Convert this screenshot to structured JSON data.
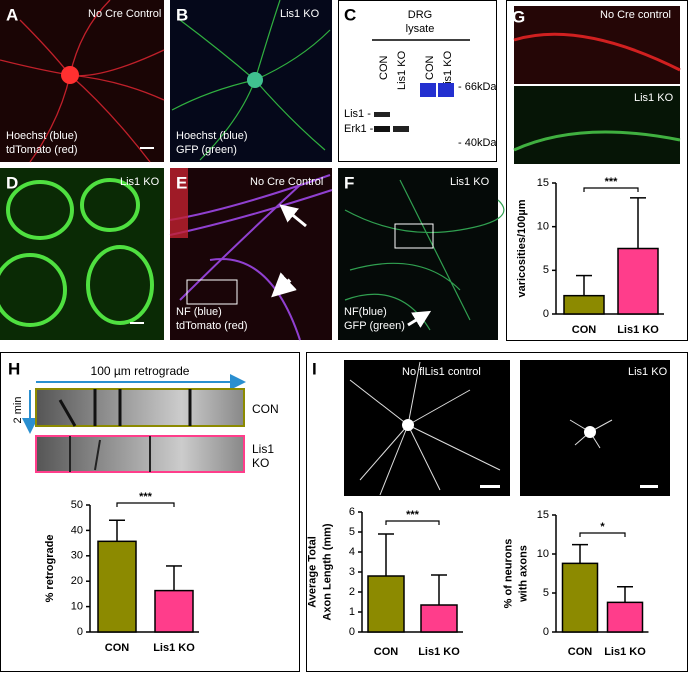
{
  "panels": {
    "A": {
      "label": "A",
      "texts": [
        "No Cre Control",
        "Hoechst (blue)",
        "tdTomato (red)"
      ]
    },
    "B": {
      "label": "B",
      "texts": [
        "Lis1 KO",
        "Hoechst (blue)",
        "GFP (green)"
      ]
    },
    "C": {
      "label": "C",
      "texts": [
        "DRG",
        "lysate",
        "CON",
        "Lis1 KO",
        "CON",
        "Lis1 KO",
        "Lis1 -",
        "Erk1 -",
        "- 66kDa",
        "- 40kDa"
      ]
    },
    "D": {
      "label": "D",
      "texts": [
        "Lis1 KO"
      ]
    },
    "E": {
      "label": "E",
      "texts": [
        "No Cre Control",
        "NF (blue)",
        "tdTomato (red)"
      ]
    },
    "F": {
      "label": "F",
      "texts": [
        "Lis1 KO",
        "NF(blue)",
        "GFP (green)"
      ]
    },
    "G": {
      "label": "G",
      "texts": [
        "No Cre control",
        "Lis1 KO"
      ]
    },
    "H": {
      "label": "H",
      "texts": [
        "100 µm retrograde",
        "2 min",
        "CON",
        "Lis1",
        "KO"
      ]
    },
    "I": {
      "label": "I",
      "texts": [
        "No flLis1 control",
        "Lis1 KO"
      ]
    }
  },
  "chart_data": [
    {
      "type": "bar",
      "ylabel": [
        "varicosities/100µm"
      ],
      "categories": [
        "CON",
        "Lis1 KO"
      ],
      "values": [
        2.1,
        7.5
      ],
      "errors": [
        2.3,
        5.8
      ],
      "colors": [
        "#8c8a00",
        "#ff3d8b"
      ],
      "ylim": [
        0,
        15
      ],
      "yticks": [
        0,
        5,
        10,
        15
      ],
      "annotation": "***"
    },
    {
      "type": "bar",
      "ylabel": [
        "% retrograde"
      ],
      "categories": [
        "CON",
        "Lis1 KO"
      ],
      "values": [
        35.7,
        16.3
      ],
      "errors": [
        8.3,
        9.7
      ],
      "colors": [
        "#8c8a00",
        "#ff3d8b"
      ],
      "ylim": [
        0,
        50
      ],
      "yticks": [
        0,
        10,
        20,
        30,
        40,
        50
      ],
      "annotation": "***"
    },
    {
      "type": "bar",
      "ylabel": [
        "Average Total",
        "Axon Length (mm)"
      ],
      "categories": [
        "CON",
        "Lis1 KO"
      ],
      "values": [
        2.8,
        1.35
      ],
      "errors": [
        2.1,
        1.5
      ],
      "colors": [
        "#8c8a00",
        "#ff3d8b"
      ],
      "ylim": [
        0,
        6
      ],
      "yticks": [
        0,
        1,
        2,
        3,
        4,
        5,
        6
      ],
      "annotation": "***"
    },
    {
      "type": "bar",
      "ylabel": [
        "% of neurons",
        "with axons"
      ],
      "categories": [
        "CON",
        "Lis1 KO"
      ],
      "values": [
        8.8,
        3.8
      ],
      "errors": [
        2.4,
        2.0
      ],
      "colors": [
        "#8c8a00",
        "#ff3d8b"
      ],
      "ylim": [
        0,
        15
      ],
      "yticks": [
        0,
        5,
        10,
        15
      ],
      "annotation": "*"
    }
  ]
}
